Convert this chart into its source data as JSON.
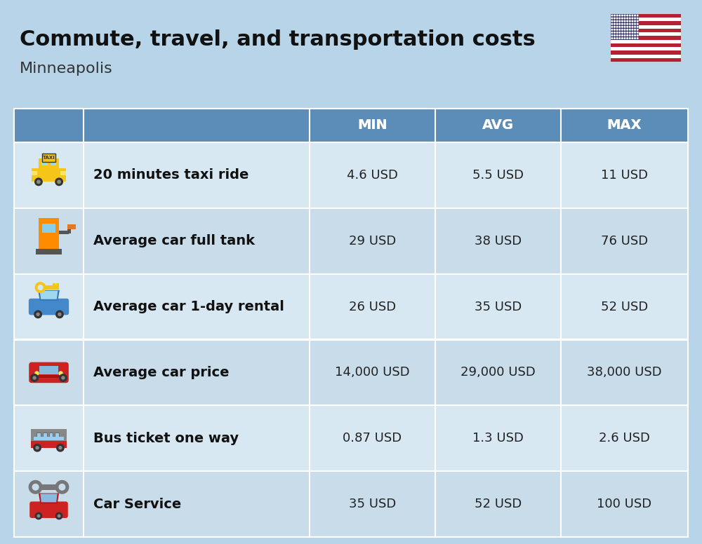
{
  "title": "Commute, travel, and transportation costs",
  "subtitle": "Minneapolis",
  "background_color": "#b8d4e8",
  "header_bg_color": "#5b8db8",
  "row_bg_even": "#c8dcea",
  "row_bg_odd": "#d8e8f2",
  "header_text_color": "#FFFFFF",
  "header_labels": [
    "MIN",
    "AVG",
    "MAX"
  ],
  "rows": [
    {
      "label": "20 minutes taxi ride",
      "min": "4.6 USD",
      "avg": "5.5 USD",
      "max": "11 USD"
    },
    {
      "label": "Average car full tank",
      "min": "29 USD",
      "avg": "38 USD",
      "max": "76 USD"
    },
    {
      "label": "Average car 1-day rental",
      "min": "26 USD",
      "avg": "35 USD",
      "max": "52 USD"
    },
    {
      "label": "Average car price",
      "min": "14,000 USD",
      "avg": "29,000 USD",
      "max": "38,000 USD"
    },
    {
      "label": "Bus ticket one way",
      "min": "0.87 USD",
      "avg": "1.3 USD",
      "max": "2.6 USD"
    },
    {
      "label": "Car Service",
      "min": "35 USD",
      "avg": "52 USD",
      "max": "100 USD"
    }
  ],
  "title_fontsize": 22,
  "subtitle_fontsize": 16,
  "header_fontsize": 14,
  "cell_fontsize": 13,
  "label_fontsize": 14
}
